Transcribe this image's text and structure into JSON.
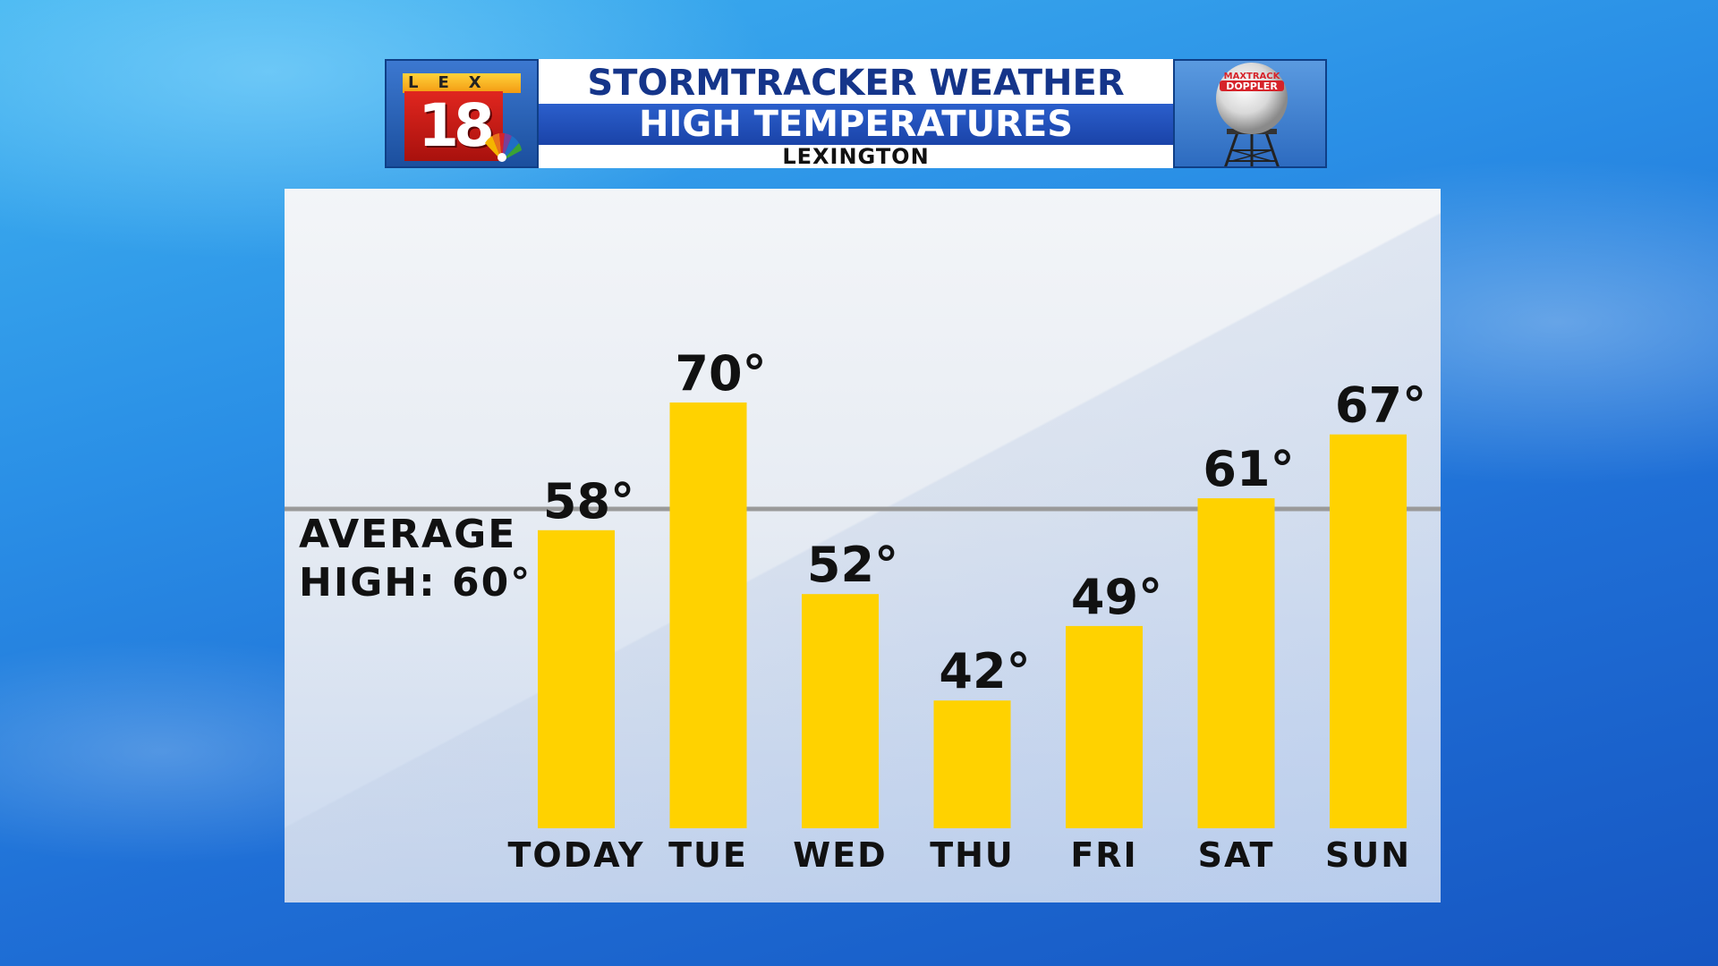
{
  "header": {
    "logo_letters": "LEX",
    "logo_number": "18",
    "title_main": "STORMTRACKER WEATHER",
    "title_sub": "HIGH TEMPERATURES",
    "location": "LEXINGTON",
    "radar_brand_top": "MAXTRACK",
    "radar_brand_bottom": "DOPPLER"
  },
  "average": {
    "line1": "AVERAGE",
    "line2": "HIGH: 60°",
    "value": 60
  },
  "colors": {
    "bar": "#ffd200",
    "average_line": "#9a9a9a",
    "header_blue": "#15358a",
    "header_band": "#1f4fb8"
  },
  "chart_data": {
    "type": "bar",
    "categories": [
      "TODAY",
      "TUE",
      "WED",
      "THU",
      "FRI",
      "SAT",
      "SUN"
    ],
    "values": [
      58,
      70,
      52,
      42,
      49,
      61,
      67
    ],
    "value_labels": [
      "58°",
      "70°",
      "52°",
      "42°",
      "49°",
      "61°",
      "67°"
    ],
    "reference_line": 60,
    "ylim": [
      30,
      80
    ],
    "grid": false
  }
}
